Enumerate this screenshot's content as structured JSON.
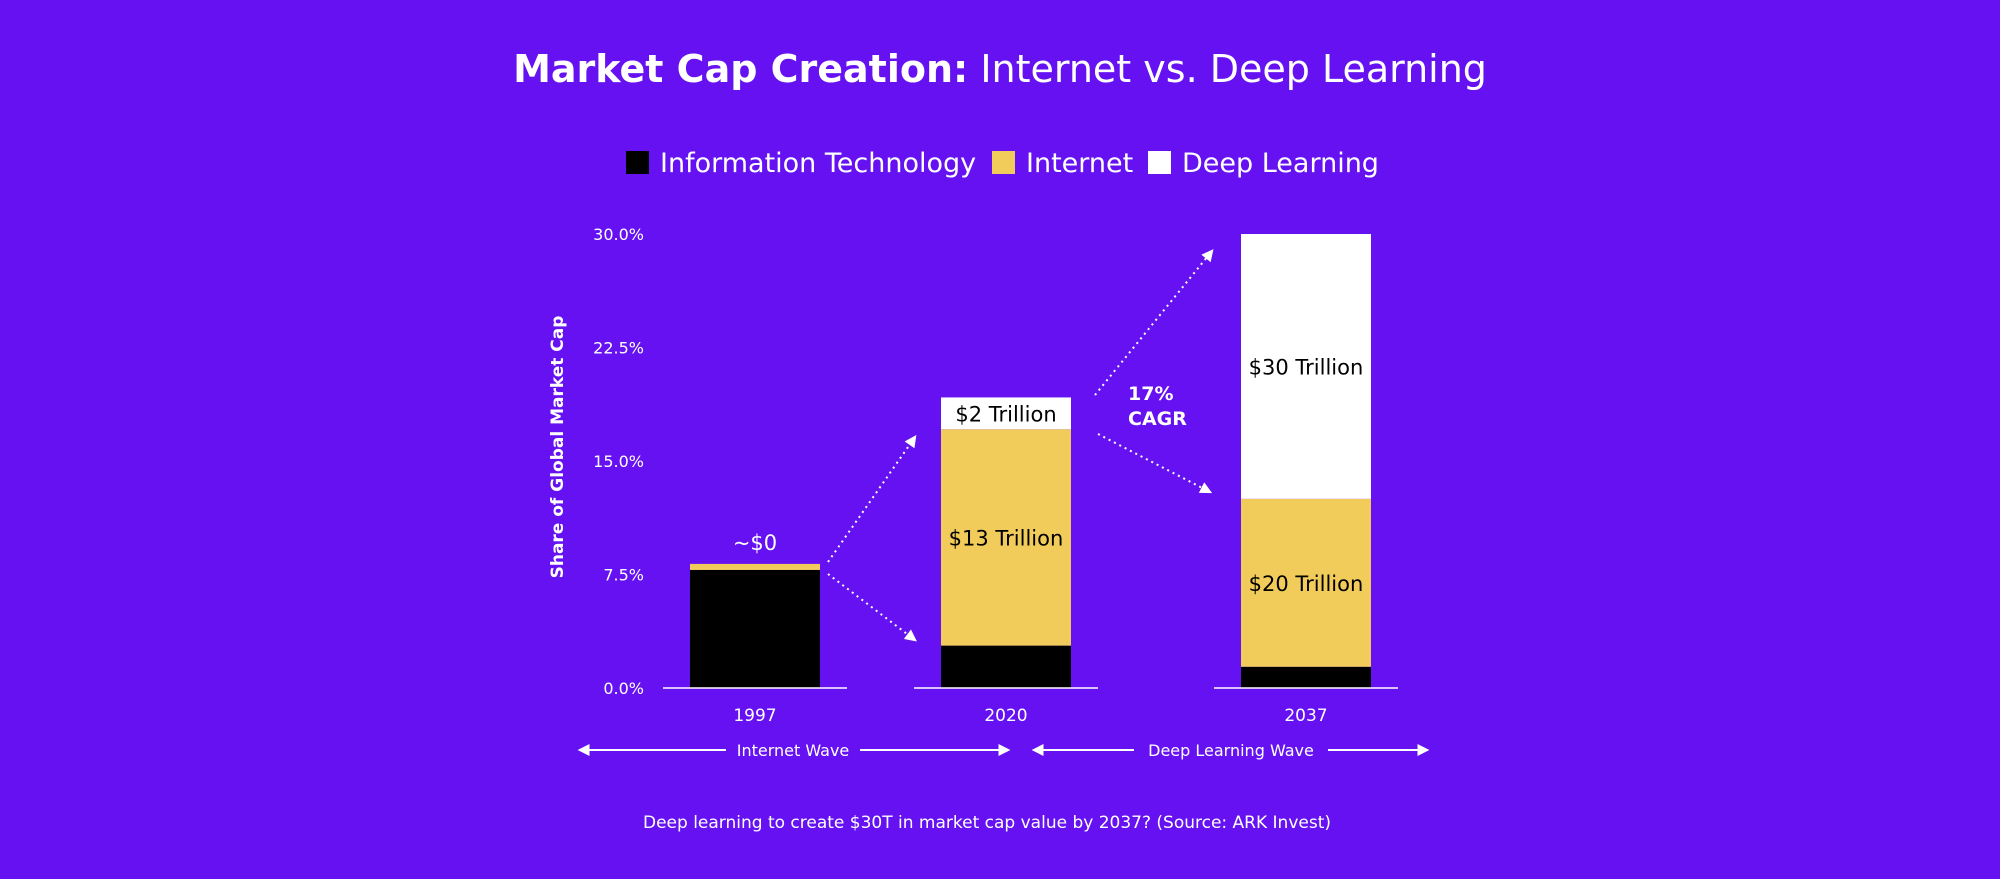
{
  "colors": {
    "background": "#6511f2",
    "it": "#000000",
    "internet": "#f2cc5a",
    "deep_learning": "#ffffff",
    "text": "#ffffff"
  },
  "chart_data": {
    "type": "bar",
    "stacked": true,
    "title": {
      "bold": "Market Cap Creation:",
      "regular": " Internet vs. Deep Learning"
    },
    "ylabel": "Share of Global Market Cap",
    "xlabel": "",
    "ylim": [
      0,
      30
    ],
    "yticks": [
      "0.0%",
      "7.5%",
      "15.0%",
      "22.5%",
      "30.0%"
    ],
    "ytick_values": [
      0,
      7.5,
      15,
      22.5,
      30
    ],
    "categories": [
      "1997",
      "2020",
      "2037"
    ],
    "legend": {
      "placement": "top",
      "entries": [
        {
          "name": "Information Technology",
          "color": "#000000"
        },
        {
          "name": "Internet",
          "color": "#f2cc5a"
        },
        {
          "name": "Deep Learning",
          "color": "#ffffff"
        }
      ]
    },
    "series": [
      {
        "name": "Information Technology",
        "values": [
          7.8,
          2.8,
          1.4
        ]
      },
      {
        "name": "Internet",
        "values": [
          0.4,
          14.3,
          11.1
        ]
      },
      {
        "name": "Deep Learning",
        "values": [
          0,
          2.1,
          17.5
        ]
      }
    ],
    "segment_labels": [
      {
        "category": "1997",
        "series": "Internet",
        "text": "~$0",
        "position": "above"
      },
      {
        "category": "2020",
        "series": "Internet",
        "text": "$13 Trillion",
        "position": "inside"
      },
      {
        "category": "2020",
        "series": "Deep Learning",
        "text": "$2 Trillion",
        "position": "inside"
      },
      {
        "category": "2037",
        "series": "Internet",
        "text": "$20 Trillion",
        "position": "inside"
      },
      {
        "category": "2037",
        "series": "Deep Learning",
        "text": "$30 Trillion",
        "position": "inside"
      }
    ],
    "annotations": {
      "cagr_line1": "17%",
      "cagr_line2": "CAGR"
    },
    "waves": [
      {
        "label": "Internet Wave",
        "from": "1997",
        "to": "2020"
      },
      {
        "label": "Deep Learning Wave",
        "from": "2020",
        "to": "2037"
      }
    ]
  },
  "caption": "Deep learning to create $30T in market cap value by 2037? (Source: ARK Invest)"
}
